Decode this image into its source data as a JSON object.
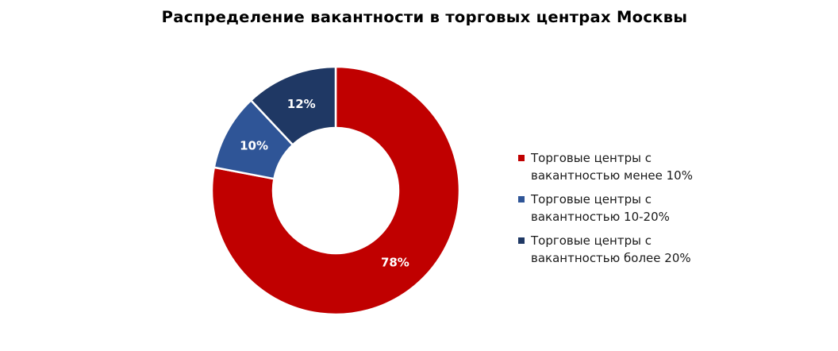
{
  "chart_data": {
    "type": "pie",
    "title": "Распределение вакантности в торговых центрах Москвы",
    "donut": true,
    "categories": [
      "Торговые центры с вакантностью менее 10%",
      "Торговые центры с вакантностью 10-20%",
      "Торговые центры с вакантностью более 20%"
    ],
    "values": [
      78,
      10,
      12
    ],
    "value_labels": [
      "78%",
      "10%",
      "12%"
    ],
    "colors": [
      "#c00000",
      "#2f5597",
      "#1f3864"
    ],
    "legend_position": "right",
    "legend": [
      {
        "line1": "Торговые центры с",
        "line2": "вакантностью менее 10%"
      },
      {
        "line1": "Торговые центры с",
        "line2": "вакантностью 10-20%"
      },
      {
        "line1": "Торговые центры с",
        "line2": "вакантностью более 20%"
      }
    ]
  }
}
